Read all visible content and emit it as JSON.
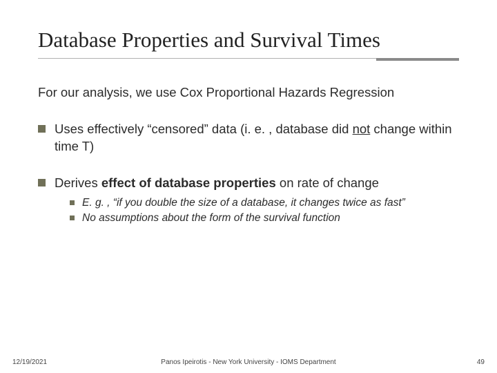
{
  "colors": {
    "background": "#ffffff",
    "text": "#2b2b2b",
    "bullet": "#707058",
    "rule_light": "#b0b0b0",
    "rule_dark": "#8a8a8a"
  },
  "typography": {
    "title_family": "Times New Roman",
    "title_size_pt": 31,
    "body_family": "Arial",
    "body_size_pt": 18.5,
    "sub_size_pt": 15.5,
    "footer_size_pt": 10
  },
  "title": "Database Properties and Survival Times",
  "intro": "For our analysis, we use Cox Proportional Hazards Regression",
  "bullets": [
    {
      "pre": "Uses effectively “censored” data (i. e. , database did ",
      "em": "not",
      "post": " change within time T)"
    },
    {
      "pre": "Derives ",
      "bold": "effect of database properties",
      "post": " on rate of change",
      "subs": [
        "E. g. , “if you double the size of a database, it changes twice as fast”",
        "No assumptions about the form of the survival function"
      ]
    }
  ],
  "footer": {
    "date": "12/19/2021",
    "center": "Panos Ipeirotis - New York University - IOMS Department",
    "page": "49"
  }
}
